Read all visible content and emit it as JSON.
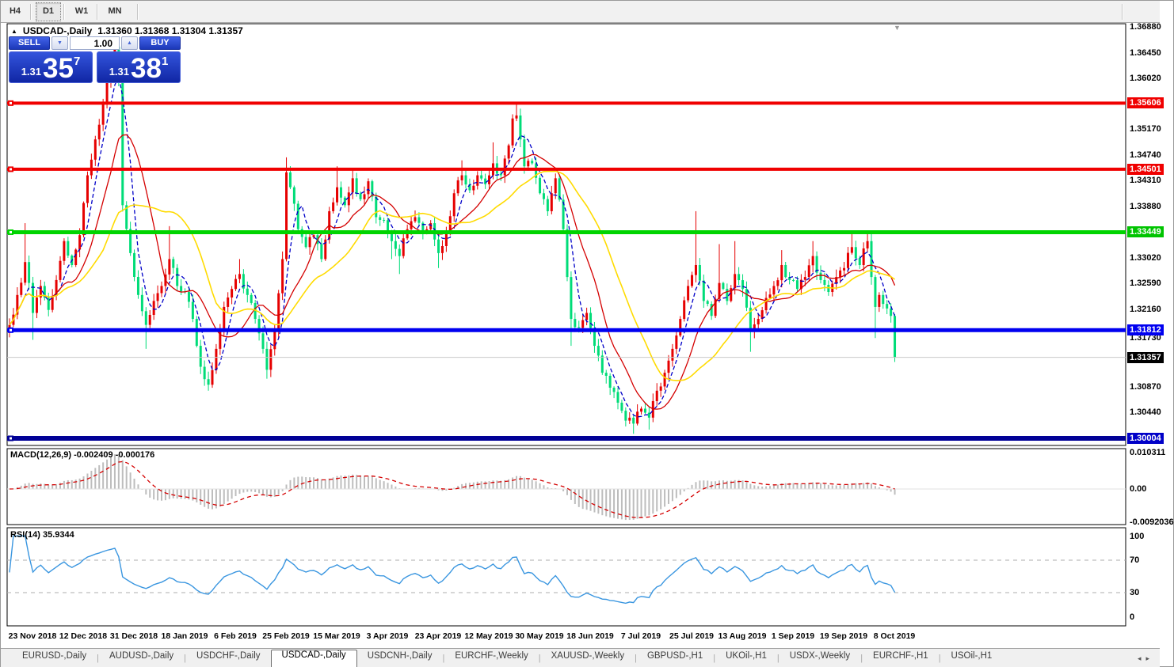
{
  "toolbar": {
    "timeframes": [
      "H4",
      "D1",
      "W1",
      "MN"
    ],
    "active": "D1"
  },
  "icons": {
    "collapse_up": "▲",
    "spinner_down": "▼",
    "spinner_up": "▲",
    "shift_marker": "▼",
    "tab_scroll_left": "◂",
    "tab_scroll_right": "▸"
  },
  "chart": {
    "symbol_title": "USDCAD-,Daily",
    "ohlc_string": "1.31360 1.31368 1.31304 1.31357"
  },
  "trade_panel": {
    "sell_label": "SELL",
    "buy_label": "BUY",
    "volume": "1.00",
    "sell_price": {
      "small": "1.31",
      "big": "35",
      "sup": "7"
    },
    "buy_price": {
      "small": "1.31",
      "big": "38",
      "sup": "1"
    }
  },
  "price_axis": {
    "ticks": [
      "1.36880",
      "1.36450",
      "1.36020",
      "1.35170",
      "1.34740",
      "1.34310",
      "1.33880",
      "1.33020",
      "1.32590",
      "1.32160",
      "1.31730",
      "1.30870",
      "1.30440"
    ],
    "markers": [
      {
        "value": "1.35606",
        "bg": "#f00000"
      },
      {
        "value": "1.34501",
        "bg": "#f00000"
      },
      {
        "value": "1.33449",
        "bg": "#00c400"
      },
      {
        "value": "1.31812",
        "bg": "#0000f0"
      },
      {
        "value": "1.31357",
        "bg": "#000000"
      },
      {
        "value": "1.30004",
        "bg": "#0000c8"
      }
    ]
  },
  "macd_panel": {
    "label": "MACD(12,26,9) -0.002409 -0.000176",
    "axis": [
      "0.010311",
      "0.00",
      "-0.0092036"
    ],
    "main_value": -0.002409,
    "signal_value": -0.000176
  },
  "rsi_panel": {
    "label": "RSI(14) 35.9344",
    "axis": [
      "100",
      "70",
      "30",
      "0"
    ],
    "value": 35.9344,
    "overbought": 70,
    "oversold": 30
  },
  "tabs": {
    "items": [
      "EURUSD-,Daily",
      "AUDUSD-,Daily",
      "USDCHF-,Daily",
      "USDCAD-,Daily",
      "USDCNH-,Daily",
      "EURCHF-,Weekly",
      "XAUUSD-,Weekly",
      "GBPUSD-,H1",
      "UKOil-,H1",
      "USDX-,Weekly",
      "EURCHF-,H1",
      "USOil-,H1"
    ],
    "active": "USDCAD-,Daily"
  },
  "chart_data": {
    "type": "candlestick",
    "symbol": "USDCAD-,Daily",
    "title": "USDCAD-,Daily 1.31360 1.31368 1.31304 1.31357",
    "convention": "red-up green-down",
    "x_dates": [
      "23 Nov 2018",
      "12 Dec 2018",
      "31 Dec 2018",
      "18 Jan 2019",
      "6 Feb 2019",
      "25 Feb 2019",
      "15 Mar 2019",
      "3 Apr 2019",
      "23 Apr 2019",
      "12 May 2019",
      "30 May 2019",
      "18 Jun 2019",
      "7 Jul 2019",
      "25 Jul 2019",
      "13 Aug 2019",
      "1 Sep 2019",
      "19 Sep 2019",
      "8 Oct 2019"
    ],
    "y_axis": {
      "visible_min": 1.2989,
      "visible_max": 1.3693,
      "tick_step": 0.0043
    },
    "levels": [
      {
        "price": 1.35606,
        "color": "#f00000",
        "width": 4
      },
      {
        "price": 1.34501,
        "color": "#f00000",
        "width": 4
      },
      {
        "price": 1.33449,
        "color": "#00d400",
        "width": 5
      },
      {
        "price": 1.31812,
        "color": "#0000f0",
        "width": 5
      },
      {
        "price": 1.30004,
        "color": "#000096",
        "width": 6
      }
    ],
    "current_price": 1.31357,
    "moving_averages": [
      {
        "name": "fast",
        "window": 5,
        "color": "#0000c8",
        "style": "dashed"
      },
      {
        "name": "mid",
        "window": 12,
        "color": "#d40000",
        "style": "solid"
      },
      {
        "name": "slow",
        "window": 25,
        "color": "#ffdb00",
        "style": "solid"
      }
    ],
    "candle_anchors": [
      [
        0,
        1.319,
        null,
        null
      ],
      [
        2,
        1.324,
        null,
        null
      ],
      [
        4,
        1.3295,
        1.336,
        null
      ],
      [
        6,
        1.321,
        null,
        1.3165
      ],
      [
        8,
        1.3255,
        null,
        null
      ],
      [
        10,
        1.3215,
        null,
        null
      ],
      [
        12,
        1.3265,
        null,
        null
      ],
      [
        14,
        1.333,
        null,
        null
      ],
      [
        16,
        1.329,
        null,
        null
      ],
      [
        18,
        1.334,
        null,
        null
      ],
      [
        20,
        1.344,
        null,
        null
      ],
      [
        22,
        1.35,
        null,
        null
      ],
      [
        24,
        1.356,
        null,
        null
      ],
      [
        26,
        1.362,
        null,
        null
      ],
      [
        27,
        1.3655,
        1.3665,
        null
      ],
      [
        28,
        1.36,
        null,
        null
      ],
      [
        29,
        1.339,
        null,
        null
      ],
      [
        31,
        1.331,
        null,
        null
      ],
      [
        33,
        1.324,
        null,
        null
      ],
      [
        35,
        1.319,
        null,
        1.315
      ],
      [
        37,
        1.323,
        null,
        null
      ],
      [
        39,
        1.3255,
        null,
        null
      ],
      [
        41,
        1.33,
        1.3355,
        null
      ],
      [
        43,
        1.3255,
        null,
        null
      ],
      [
        45,
        1.3245,
        null,
        null
      ],
      [
        47,
        1.32,
        null,
        null
      ],
      [
        49,
        1.312,
        null,
        null
      ],
      [
        51,
        1.309,
        null,
        1.308
      ],
      [
        53,
        1.315,
        null,
        null
      ],
      [
        55,
        1.322,
        null,
        null
      ],
      [
        57,
        1.325,
        null,
        null
      ],
      [
        59,
        1.3275,
        1.33,
        null
      ],
      [
        61,
        1.324,
        null,
        null
      ],
      [
        63,
        1.32,
        null,
        null
      ],
      [
        65,
        1.315,
        null,
        null
      ],
      [
        66,
        1.3115,
        null,
        1.31
      ],
      [
        68,
        1.318,
        null,
        null
      ],
      [
        70,
        1.33,
        null,
        null
      ],
      [
        71,
        1.3445,
        1.347,
        null
      ],
      [
        72,
        1.342,
        null,
        null
      ],
      [
        74,
        1.335,
        null,
        null
      ],
      [
        76,
        1.332,
        null,
        null
      ],
      [
        78,
        1.334,
        null,
        null
      ],
      [
        80,
        1.33,
        null,
        null
      ],
      [
        82,
        1.338,
        null,
        null
      ],
      [
        84,
        1.342,
        1.3455,
        null
      ],
      [
        86,
        1.339,
        null,
        null
      ],
      [
        88,
        1.3435,
        1.345,
        null
      ],
      [
        90,
        1.34,
        null,
        null
      ],
      [
        92,
        1.343,
        null,
        null
      ],
      [
        94,
        1.337,
        null,
        null
      ],
      [
        96,
        1.3365,
        null,
        null
      ],
      [
        98,
        1.333,
        null,
        1.33
      ],
      [
        100,
        1.3305,
        null,
        1.3275
      ],
      [
        102,
        1.335,
        null,
        null
      ],
      [
        104,
        1.337,
        null,
        null
      ],
      [
        106,
        1.3345,
        null,
        null
      ],
      [
        108,
        1.336,
        null,
        null
      ],
      [
        110,
        1.331,
        null,
        1.3285
      ],
      [
        112,
        1.3345,
        null,
        null
      ],
      [
        114,
        1.341,
        null,
        null
      ],
      [
        116,
        1.344,
        1.3465,
        null
      ],
      [
        118,
        1.3415,
        null,
        null
      ],
      [
        120,
        1.344,
        null,
        null
      ],
      [
        122,
        1.3425,
        null,
        null
      ],
      [
        124,
        1.346,
        1.3495,
        null
      ],
      [
        126,
        1.344,
        null,
        null
      ],
      [
        128,
        1.349,
        null,
        null
      ],
      [
        129,
        1.3535,
        null,
        null
      ],
      [
        130,
        1.354,
        1.356,
        null
      ],
      [
        131,
        1.35,
        null,
        null
      ],
      [
        132,
        1.3455,
        null,
        null
      ],
      [
        134,
        1.346,
        null,
        null
      ],
      [
        136,
        1.341,
        null,
        null
      ],
      [
        138,
        1.338,
        null,
        null
      ],
      [
        140,
        1.3435,
        null,
        null
      ],
      [
        142,
        1.335,
        null,
        null
      ],
      [
        143,
        1.327,
        null,
        null
      ],
      [
        144,
        1.32,
        null,
        1.3155
      ],
      [
        146,
        1.3185,
        null,
        null
      ],
      [
        148,
        1.321,
        null,
        null
      ],
      [
        150,
        1.3155,
        null,
        null
      ],
      [
        152,
        1.311,
        null,
        null
      ],
      [
        154,
        1.3085,
        null,
        null
      ],
      [
        156,
        1.306,
        null,
        null
      ],
      [
        158,
        1.303,
        null,
        null
      ],
      [
        160,
        1.3025,
        null,
        1.3008
      ],
      [
        162,
        1.305,
        null,
        null
      ],
      [
        164,
        1.3035,
        null,
        1.3015
      ],
      [
        166,
        1.308,
        null,
        null
      ],
      [
        168,
        1.311,
        null,
        null
      ],
      [
        170,
        1.315,
        null,
        null
      ],
      [
        172,
        1.32,
        null,
        null
      ],
      [
        174,
        1.3255,
        null,
        null
      ],
      [
        176,
        1.329,
        1.338,
        null
      ],
      [
        178,
        1.323,
        null,
        null
      ],
      [
        180,
        1.3205,
        null,
        null
      ],
      [
        182,
        1.326,
        1.3325,
        null
      ],
      [
        184,
        1.323,
        null,
        null
      ],
      [
        186,
        1.3275,
        1.333,
        null
      ],
      [
        188,
        1.325,
        null,
        null
      ],
      [
        190,
        1.318,
        null,
        1.3145
      ],
      [
        192,
        1.32,
        null,
        null
      ],
      [
        194,
        1.3235,
        null,
        null
      ],
      [
        196,
        1.3255,
        null,
        null
      ],
      [
        198,
        1.329,
        1.3315,
        null
      ],
      [
        200,
        1.3265,
        null,
        null
      ],
      [
        202,
        1.325,
        null,
        null
      ],
      [
        204,
        1.327,
        null,
        null
      ],
      [
        206,
        1.3305,
        1.333,
        null
      ],
      [
        208,
        1.3265,
        null,
        null
      ],
      [
        210,
        1.3245,
        null,
        null
      ],
      [
        212,
        1.327,
        null,
        null
      ],
      [
        214,
        1.3285,
        null,
        null
      ],
      [
        216,
        1.332,
        1.3345,
        null
      ],
      [
        218,
        1.329,
        null,
        null
      ],
      [
        220,
        1.333,
        1.3345,
        null
      ],
      [
        221,
        1.327,
        null,
        null
      ],
      [
        222,
        1.322,
        null,
        1.3168
      ],
      [
        223,
        1.324,
        null,
        null
      ],
      [
        224,
        1.3225,
        null,
        null
      ],
      [
        226,
        1.3205,
        null,
        null
      ],
      [
        227,
        1.31357,
        null,
        1.3128
      ]
    ],
    "macd": {
      "params": [
        12,
        26,
        9
      ],
      "current_main": -0.002409,
      "current_signal": -0.000176,
      "axis_max": 0.010311,
      "axis_min": -0.0092036
    },
    "rsi": {
      "period": 14,
      "current": 35.9344,
      "overbought": 70,
      "oversold": 30
    }
  }
}
